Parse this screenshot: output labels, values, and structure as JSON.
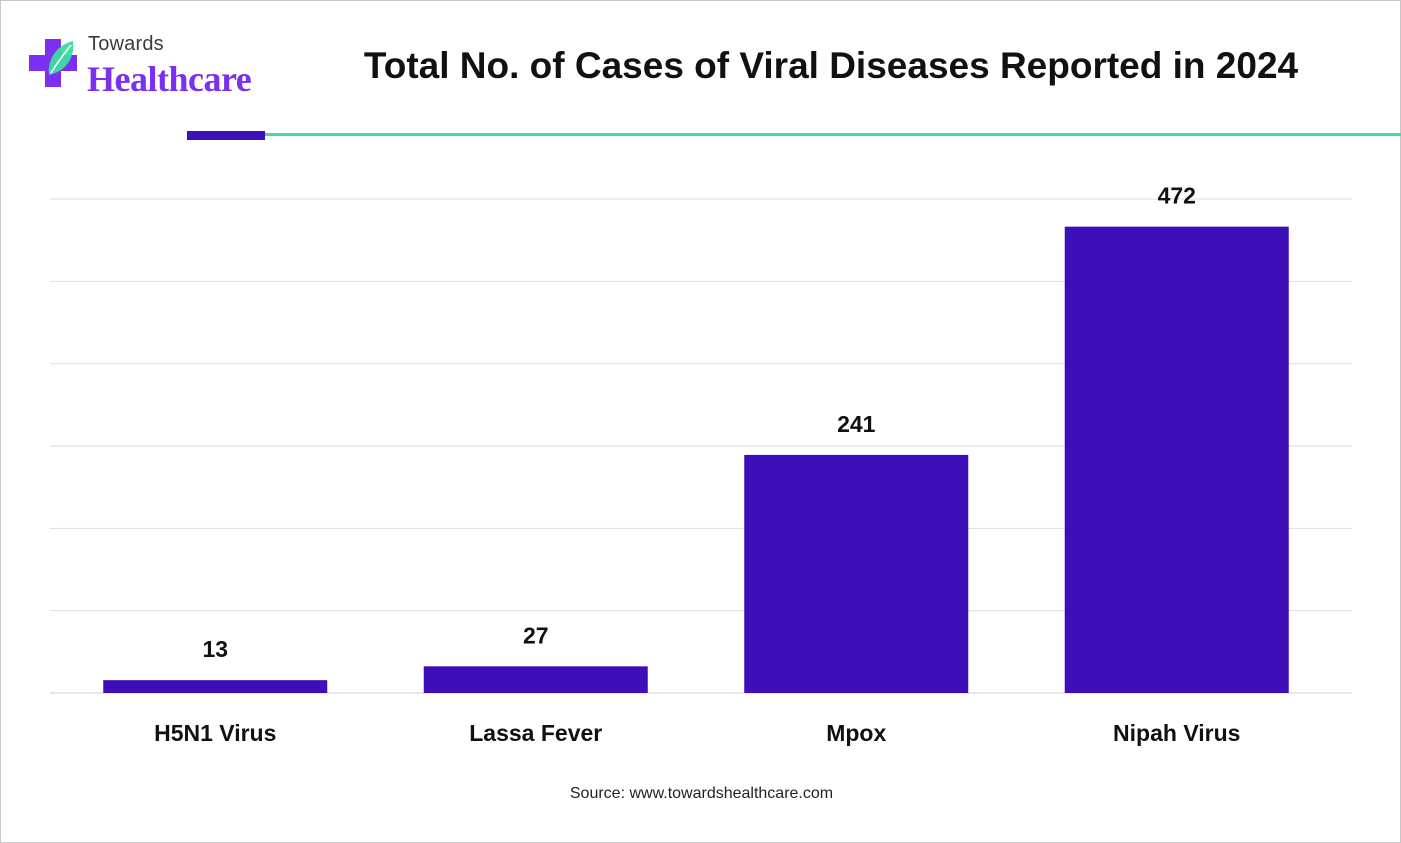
{
  "logo": {
    "line1": "Towards",
    "line2": "Healthcare"
  },
  "chart_data": {
    "type": "bar",
    "title": "Total No. of Cases of Viral Diseases Reported in 2024",
    "categories": [
      "H5N1 Virus",
      "Lassa Fever",
      "Mpox",
      "Nipah Virus"
    ],
    "values": [
      13,
      27,
      241,
      472
    ],
    "xlabel": "",
    "ylabel": "",
    "ylim": [
      0,
      500
    ],
    "grid": true,
    "bar_color": "#3d0fb8"
  },
  "source": "Source: www.towardshealthcare.com",
  "colors": {
    "accent_purple": "#3d0fb8",
    "accent_teal": "#3ddc9f",
    "logo_purple": "#7b2ff2",
    "logo_green": "#3ddc9f"
  }
}
